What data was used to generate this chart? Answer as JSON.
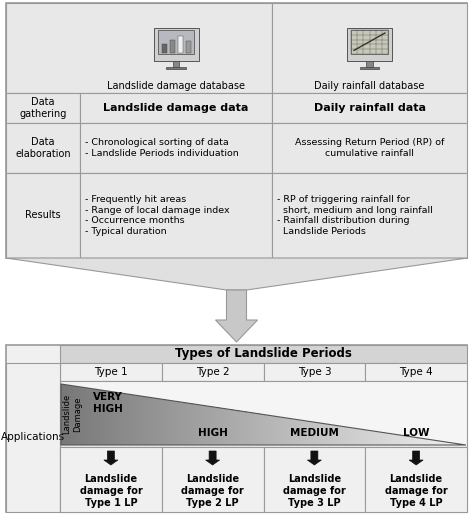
{
  "fig_width": 4.73,
  "fig_height": 5.15,
  "bg_color": "#ffffff",
  "top_table": {
    "col1_header": "Landslide damage database",
    "col2_header": "Daily rainfall database",
    "col1_data_gathering": "Landslide damage data",
    "col2_data_gathering": "Daily rainfall data",
    "col1_elaboration": "- Chronological sorting of data\n- Landslide Periods individuation",
    "col2_elaboration": "Assessing Return Period (RP) of\ncumulative rainfall",
    "col1_results": "- Frequently hit areas\n- Range of local damage index\n- Occurrence months\n- Typical duration",
    "col2_results": "- RP of triggering rainfall for\n  short, medium and long rainfall\n- Rainfall distribution during\n  Landslide Periods",
    "row0_label": "",
    "row1_label": "Data\ngathering",
    "row2_label": "Data\nelaboration",
    "row3_label": "Results"
  },
  "bottom_table": {
    "title": "Types of Landslide Periods",
    "types": [
      "Type 1",
      "Type 2",
      "Type 3",
      "Type 4"
    ],
    "damage_labels": [
      "VERY\nHIGH",
      "HIGH",
      "MEDIUM",
      "LOW"
    ],
    "app_label": "Applications",
    "y_label": "Landslide\nDamage",
    "output_labels": [
      "Landslide\ndamage for\nType 1 LP",
      "Landslide\ndamage for\nType 2 LP",
      "Landslide\ndamage for\nType 3 LP",
      "Landslide\ndamage for\nType 4 LP"
    ]
  },
  "colors": {
    "table_bg": "#e8e8e8",
    "table_bg2": "#f0f0f0",
    "border": "#999999",
    "title_bg": "#d4d4d4",
    "white": "#ffffff",
    "tri_dark": "#808080",
    "tri_light": "#d8d8d8",
    "funnel_bg": "#e0e0e0",
    "arrow_fill": "#c8c8c8"
  }
}
